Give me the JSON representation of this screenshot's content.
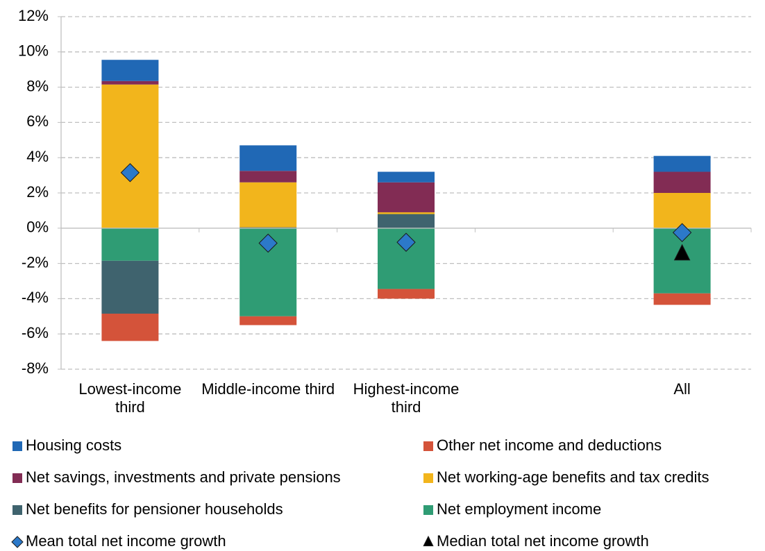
{
  "chart_data": {
    "type": "stacked-bar",
    "categories": [
      "Lowest-income third",
      "Middle-income third",
      "Highest-income third",
      null,
      "All"
    ],
    "ylim": [
      -8,
      12
    ],
    "yticks": [
      {
        "value": -8,
        "label": "-8%"
      },
      {
        "value": -6,
        "label": "-6%"
      },
      {
        "value": -4,
        "label": "-4%"
      },
      {
        "value": -2,
        "label": "-2%"
      },
      {
        "value": 0,
        "label": "0%"
      },
      {
        "value": 2,
        "label": "2%"
      },
      {
        "value": 4,
        "label": "4%"
      },
      {
        "value": 6,
        "label": "6%"
      },
      {
        "value": 8,
        "label": "8%"
      },
      {
        "value": 10,
        "label": "10%"
      },
      {
        "value": 12,
        "label": "12%"
      }
    ],
    "grid": true,
    "series": [
      {
        "name": "Housing costs",
        "color": "#2068b5",
        "values": [
          1.2,
          1.45,
          0.6,
          null,
          0.9
        ]
      },
      {
        "name": "Other net income and deductions",
        "color": "#d4533a",
        "values": [
          -1.55,
          -0.5,
          -0.55,
          null,
          -0.65
        ]
      },
      {
        "name": "Net savings, investments and private pensions",
        "color": "#822c54",
        "values": [
          0.2,
          0.65,
          1.7,
          null,
          1.2
        ]
      },
      {
        "name": "Net working-age benefits and tax credits",
        "color": "#f2b51c",
        "values": [
          8.15,
          2.55,
          0.1,
          null,
          2.0
        ]
      },
      {
        "name": "Net benefits for pensioner households",
        "color": "#3f636e",
        "values": [
          -3.0,
          0.05,
          0.8,
          null,
          0
        ]
      },
      {
        "name": "Net employment income",
        "color": "#2f9c74",
        "values": [
          -1.85,
          -5.0,
          -3.45,
          null,
          -3.7
        ]
      }
    ],
    "markers": [
      {
        "name": "Mean total net income growth",
        "color": "#2c79c9",
        "marker": "diamond",
        "values": [
          3.15,
          -0.85,
          -0.8,
          null,
          -0.25
        ]
      },
      {
        "name": "Median total net income growth",
        "color": "#000000",
        "marker": "triangle",
        "values": [
          null,
          null,
          null,
          null,
          -1.45
        ]
      }
    ]
  }
}
